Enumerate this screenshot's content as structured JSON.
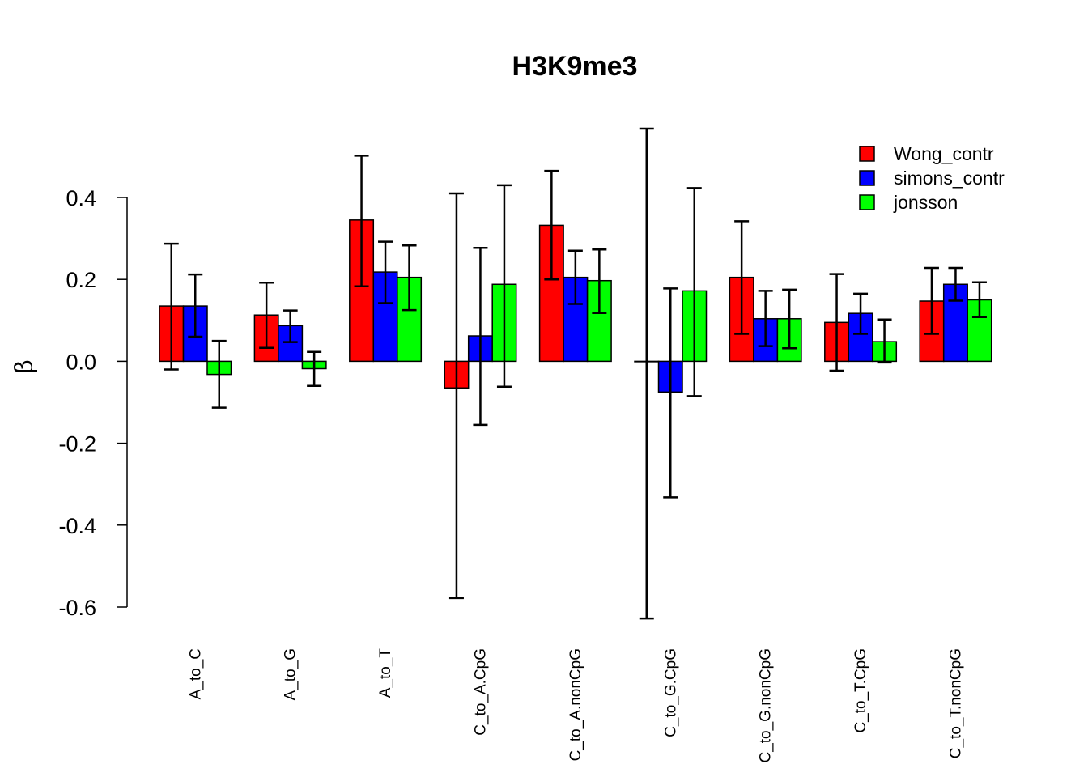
{
  "chart_data": {
    "type": "bar",
    "title": "H3K9me3",
    "xlabel": "",
    "ylabel": "β",
    "ylim": [
      -0.6,
      0.4
    ],
    "yticks": [
      "0.4",
      "0.2",
      "0.0",
      "-0.2",
      "-0.4",
      "-0.6"
    ],
    "grid": false,
    "legend_position": "top-right",
    "categories": [
      "A_to_C",
      "A_to_G",
      "A_to_T",
      "C_to_A.CpG",
      "C_to_A.nonCpG",
      "C_to_G.CpG",
      "C_to_G.nonCpG",
      "C_to_T.CpG",
      "C_to_T.nonCpG"
    ],
    "series": [
      {
        "name": "Wong_contr",
        "color": "#ff0000",
        "values": [
          0.135,
          0.113,
          0.345,
          -0.065,
          0.332,
          0.0,
          0.205,
          0.095,
          0.147
        ],
        "err_low": [
          -0.02,
          0.033,
          0.183,
          -0.578,
          0.2,
          -0.628,
          0.067,
          -0.023,
          0.067
        ],
        "err_high": [
          0.287,
          0.192,
          0.502,
          0.41,
          0.465,
          0.568,
          0.342,
          0.213,
          0.228
        ]
      },
      {
        "name": "simons_contr",
        "color": "#0000ff",
        "values": [
          0.135,
          0.087,
          0.218,
          0.062,
          0.205,
          -0.075,
          0.104,
          0.117,
          0.188
        ],
        "err_low": [
          0.06,
          0.047,
          0.142,
          -0.155,
          0.14,
          -0.332,
          0.037,
          0.067,
          0.148
        ],
        "err_high": [
          0.212,
          0.124,
          0.292,
          0.277,
          0.27,
          0.178,
          0.172,
          0.165,
          0.228
        ]
      },
      {
        "name": "jonsson",
        "color": "#00ff00",
        "values": [
          -0.032,
          -0.018,
          0.205,
          0.188,
          0.197,
          0.172,
          0.104,
          0.048,
          0.15
        ],
        "err_low": [
          -0.113,
          -0.06,
          0.125,
          -0.062,
          0.118,
          -0.085,
          0.032,
          -0.003,
          0.108
        ],
        "err_high": [
          0.05,
          0.023,
          0.283,
          0.43,
          0.273,
          0.423,
          0.175,
          0.102,
          0.193
        ]
      }
    ]
  }
}
